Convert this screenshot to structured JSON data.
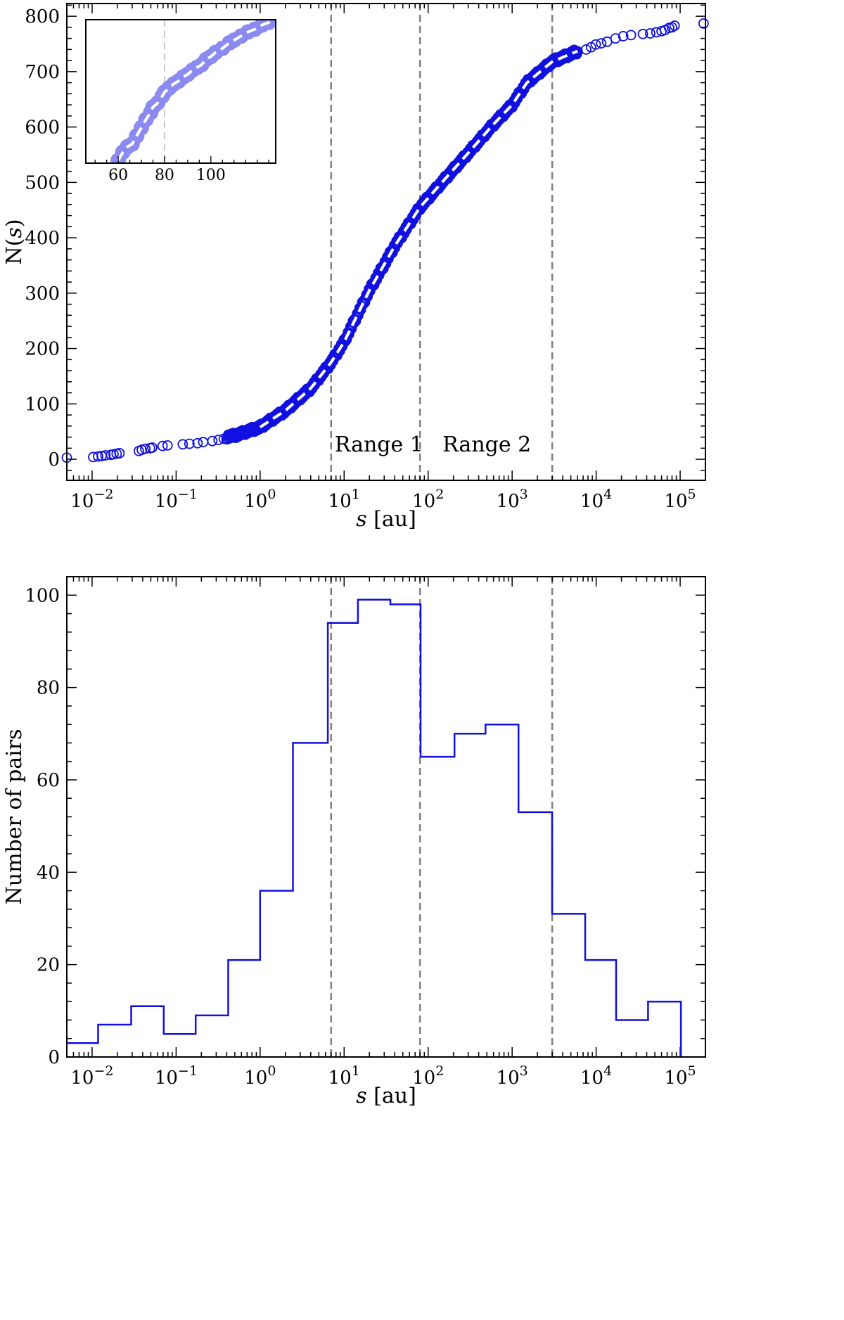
{
  "colors": {
    "series": "#1010e0",
    "inset_series": "#8a8af0",
    "vline": "#808080",
    "fit": "#ffffff"
  },
  "chart_data": [
    {
      "type": "scatter",
      "xscale": "log",
      "xlim": [
        0.005,
        200000
      ],
      "ylim": [
        -38,
        823
      ],
      "xlabel_var": "s",
      "xlabel_unit": " [au]",
      "ylabel_prefix": "N(",
      "ylabel_var": "s",
      "ylabel_suffix": ")",
      "y_ticks": [
        0,
        100,
        200,
        300,
        400,
        500,
        600,
        700,
        800
      ],
      "x_ticks": [
        {
          "value": 0.01,
          "base": "10",
          "exp": "−2"
        },
        {
          "value": 0.1,
          "base": "10",
          "exp": "−1"
        },
        {
          "value": 1,
          "base": "10",
          "exp": "0"
        },
        {
          "value": 10,
          "base": "10",
          "exp": "1"
        },
        {
          "value": 100,
          "base": "10",
          "exp": "2"
        },
        {
          "value": 1000,
          "base": "10",
          "exp": "3"
        },
        {
          "value": 10000,
          "base": "10",
          "exp": "4"
        },
        {
          "value": 100000,
          "base": "10",
          "exp": "5"
        }
      ],
      "vlines": [
        7,
        80,
        3000
      ],
      "annotations": [
        {
          "text": "Range 1",
          "x": 26,
          "y": 14
        },
        {
          "text": "Range 2",
          "x": 500,
          "y": 14
        }
      ],
      "curve_knots": [
        [
          0.005,
          0
        ],
        [
          0.01,
          5
        ],
        [
          0.02,
          12
        ],
        [
          0.05,
          22
        ],
        [
          0.1,
          28
        ],
        [
          0.2,
          34
        ],
        [
          0.5,
          43
        ],
        [
          1,
          58
        ],
        [
          2,
          88
        ],
        [
          4,
          128
        ],
        [
          7,
          175
        ],
        [
          10,
          212
        ],
        [
          20,
          305
        ],
        [
          40,
          385
        ],
        [
          80,
          455
        ],
        [
          150,
          502
        ],
        [
          300,
          553
        ],
        [
          600,
          605
        ],
        [
          1000,
          640
        ],
        [
          1500,
          680
        ],
        [
          3000,
          718
        ],
        [
          6000,
          737
        ],
        [
          10000,
          752
        ],
        [
          30000,
          770
        ],
        [
          80000,
          782
        ],
        [
          200000,
          788
        ]
      ],
      "dense_range": [
        0.4,
        6000
      ],
      "sparse_points": [
        [
          0.005,
          3
        ],
        [
          0.0103,
          4
        ],
        [
          0.0118,
          5
        ],
        [
          0.013,
          6
        ],
        [
          0.0144,
          7
        ],
        [
          0.0168,
          8
        ],
        [
          0.018,
          9
        ],
        [
          0.0196,
          10
        ],
        [
          0.0212,
          11
        ],
        [
          0.036,
          15
        ],
        [
          0.039,
          17
        ],
        [
          0.043,
          19
        ],
        [
          0.049,
          20
        ],
        [
          0.052,
          21
        ],
        [
          0.069,
          24
        ],
        [
          0.079,
          25
        ],
        [
          0.12,
          27
        ],
        [
          0.144,
          28
        ],
        [
          0.18,
          29
        ],
        [
          0.21,
          31
        ],
        [
          0.27,
          33
        ],
        [
          0.32,
          35
        ],
        [
          0.37,
          37
        ],
        [
          7600,
          740
        ],
        [
          8700,
          744
        ],
        [
          9900,
          749
        ],
        [
          11500,
          751
        ],
        [
          13500,
          754
        ],
        [
          17000,
          760
        ],
        [
          21000,
          764
        ],
        [
          26000,
          766
        ],
        [
          36000,
          768
        ],
        [
          44000,
          769
        ],
        [
          52000,
          771
        ],
        [
          60000,
          773
        ],
        [
          66000,
          775
        ],
        [
          74000,
          779
        ],
        [
          80000,
          780
        ],
        [
          86000,
          783
        ],
        [
          190000,
          787
        ]
      ],
      "inset": {
        "xlim": [
          46,
          128
        ],
        "ylim": [
          400,
          505
        ],
        "vline": 80,
        "x_ticks": [
          60,
          80,
          100
        ],
        "points": [
          [
            60,
            402
          ],
          [
            62,
            408
          ],
          [
            64,
            412
          ],
          [
            66,
            414
          ],
          [
            68,
            420
          ],
          [
            70,
            426
          ],
          [
            72,
            432
          ],
          [
            74,
            437
          ],
          [
            75,
            441
          ],
          [
            77,
            444
          ],
          [
            79,
            449
          ],
          [
            80,
            452
          ],
          [
            82,
            455
          ],
          [
            84,
            458
          ],
          [
            86,
            460
          ],
          [
            88,
            463
          ],
          [
            90,
            465
          ],
          [
            92,
            468
          ],
          [
            94,
            470
          ],
          [
            96,
            472
          ],
          [
            98,
            476
          ],
          [
            100,
            478
          ],
          [
            102,
            481
          ],
          [
            105,
            484
          ],
          [
            108,
            488
          ],
          [
            110,
            490
          ],
          [
            113,
            493
          ],
          [
            116,
            496
          ],
          [
            119,
            498
          ],
          [
            122,
            501
          ],
          [
            125,
            503
          ],
          [
            128,
            505
          ]
        ]
      }
    },
    {
      "type": "histogram",
      "xscale": "log",
      "xlim": [
        0.005,
        200000
      ],
      "ylim": [
        0,
        104
      ],
      "xlabel_var": "s",
      "xlabel_unit": " [au]",
      "ylabel": "Number of pairs",
      "y_ticks": [
        0,
        20,
        40,
        60,
        80,
        100
      ],
      "x_ticks": [
        {
          "value": 0.01,
          "base": "10",
          "exp": "−2"
        },
        {
          "value": 0.1,
          "base": "10",
          "exp": "−1"
        },
        {
          "value": 1,
          "base": "10",
          "exp": "0"
        },
        {
          "value": 10,
          "base": "10",
          "exp": "1"
        },
        {
          "value": 100,
          "base": "10",
          "exp": "2"
        },
        {
          "value": 1000,
          "base": "10",
          "exp": "3"
        },
        {
          "value": 10000,
          "base": "10",
          "exp": "4"
        },
        {
          "value": 100000,
          "base": "10",
          "exp": "5"
        }
      ],
      "vlines": [
        7,
        80,
        3000
      ],
      "bin_edges": [
        0.005,
        0.0118,
        0.0292,
        0.0713,
        0.171,
        0.417,
        1.0,
        2.46,
        6.4,
        14.6,
        35.5,
        81.3,
        206,
        482,
        1190,
        2990,
        7400,
        17300,
        41500,
        102000
      ],
      "counts": [
        3,
        7,
        11,
        5,
        9,
        21,
        36,
        68,
        94,
        99,
        98,
        65,
        70,
        72,
        53,
        31,
        21,
        8,
        12
      ]
    }
  ]
}
